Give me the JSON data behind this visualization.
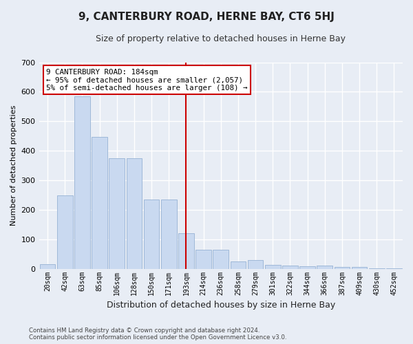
{
  "title": "9, CANTERBURY ROAD, HERNE BAY, CT6 5HJ",
  "subtitle": "Size of property relative to detached houses in Herne Bay",
  "xlabel": "Distribution of detached houses by size in Herne Bay",
  "ylabel": "Number of detached properties",
  "bar_labels": [
    "20sqm",
    "42sqm",
    "63sqm",
    "85sqm",
    "106sqm",
    "128sqm",
    "150sqm",
    "171sqm",
    "193sqm",
    "214sqm",
    "236sqm",
    "258sqm",
    "279sqm",
    "301sqm",
    "322sqm",
    "344sqm",
    "366sqm",
    "387sqm",
    "409sqm",
    "430sqm",
    "452sqm"
  ],
  "bar_values": [
    15,
    248,
    585,
    448,
    375,
    375,
    235,
    235,
    120,
    65,
    65,
    25,
    30,
    12,
    10,
    8,
    10,
    5,
    5,
    2,
    2
  ],
  "bar_color": "#c9d9f0",
  "bar_edge_color": "#9fb8d8",
  "background_color": "#e8edf5",
  "grid_color": "#ffffff",
  "annotation_text_line1": "9 CANTERBURY ROAD: 184sqm",
  "annotation_text_line2": "← 95% of detached houses are smaller (2,057)",
  "annotation_text_line3": "5% of semi-detached houses are larger (108) →",
  "annotation_box_facecolor": "#ffffff",
  "annotation_box_edgecolor": "#cc0000",
  "vline_color": "#cc0000",
  "vline_x_index": 8,
  "ylim": [
    0,
    700
  ],
  "yticks": [
    0,
    100,
    200,
    300,
    400,
    500,
    600,
    700
  ],
  "footer_line1": "Contains HM Land Registry data © Crown copyright and database right 2024.",
  "footer_line2": "Contains public sector information licensed under the Open Government Licence v3.0."
}
